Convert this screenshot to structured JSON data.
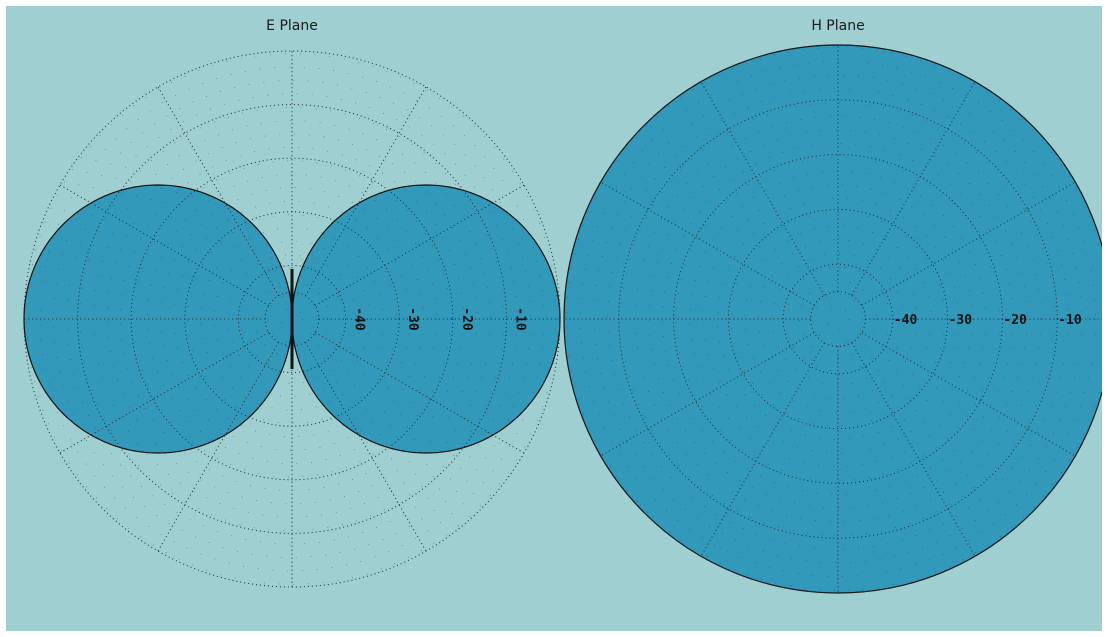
{
  "colors": {
    "background": "#9fcfd0",
    "fill": "#3399bb",
    "grid": "#1a2a30",
    "outline": "#111111"
  },
  "chart_data": [
    {
      "type": "polar-area",
      "title": "E Plane",
      "r_ticks": [
        "-40",
        "-30",
        "-20",
        "-10"
      ],
      "r_ticks_db": [
        -40,
        -30,
        -20,
        -10
      ],
      "r_range_db": [
        -50,
        0
      ],
      "tick_label_rotation": "vertical",
      "angle_grid_step_deg": 30,
      "grid": true,
      "pattern": "dipole figure-eight (cos θ), max 0 dB along horizontal axis, null along vertical axis",
      "angles_deg": [
        0,
        15,
        30,
        45,
        60,
        75,
        85,
        90,
        95,
        105,
        120,
        135,
        150,
        165,
        180,
        195,
        210,
        225,
        240,
        255,
        265,
        270,
        275,
        285,
        300,
        315,
        330,
        345
      ],
      "values_db": [
        0,
        -0.3,
        -1.2,
        -3,
        -6,
        -11.7,
        -21.2,
        -50,
        -21.2,
        -11.7,
        -6,
        -3,
        -1.2,
        -0.3,
        0,
        -0.3,
        -1.2,
        -3,
        -6,
        -11.7,
        -21.2,
        -50,
        -21.2,
        -11.7,
        -6,
        -3,
        -1.2,
        -0.3
      ]
    },
    {
      "type": "polar-area",
      "title": "H Plane",
      "r_ticks": [
        "-40",
        "-30",
        "-20",
        "-10"
      ],
      "r_ticks_db": [
        -40,
        -30,
        -20,
        -10
      ],
      "r_range_db": [
        -50,
        0
      ],
      "tick_label_rotation": "horizontal",
      "angle_grid_step_deg": 30,
      "grid": true,
      "pattern": "omnidirectional, 0 dB at all angles",
      "angles_deg": [
        0,
        30,
        60,
        90,
        120,
        150,
        180,
        210,
        240,
        270,
        300,
        330
      ],
      "values_db": [
        0,
        0,
        0,
        0,
        0,
        0,
        0,
        0,
        0,
        0,
        0,
        0
      ]
    }
  ]
}
